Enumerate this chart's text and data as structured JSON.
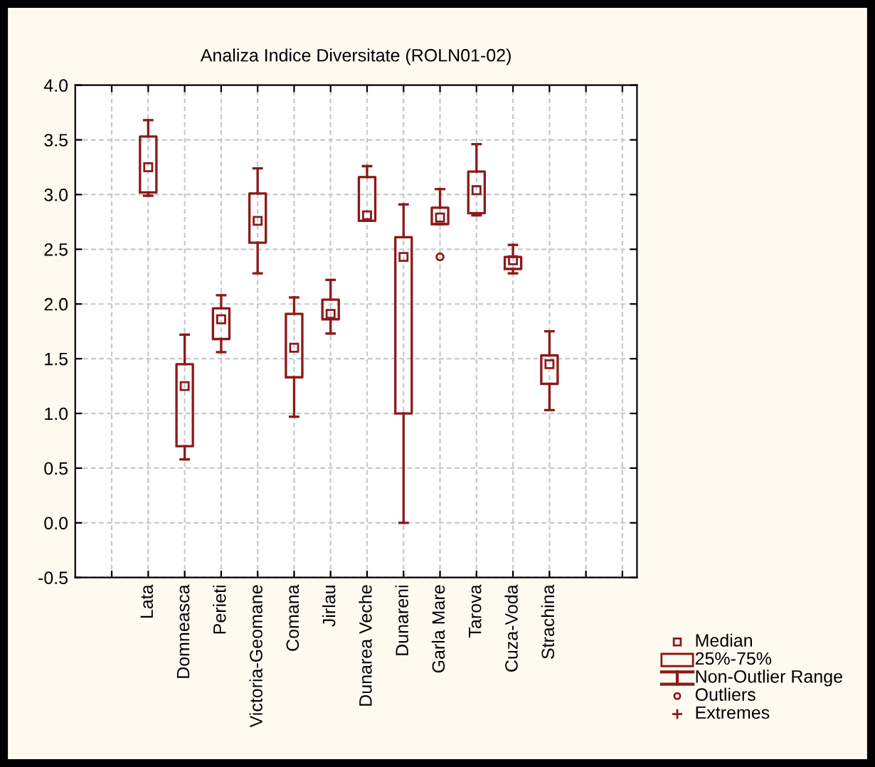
{
  "chart_data": {
    "type": "box",
    "title": "Analiza Indice Diversitate (ROLN01-02)",
    "categories": [
      "Lata",
      "Domneasca",
      "Perieti",
      "Victoria-Geomane",
      "Comana",
      "Jirlau",
      "Dunarea Veche",
      "Dunareni",
      "Garla Mare",
      "Tarova",
      "Cuza-Voda",
      "Strachina"
    ],
    "color": "#8b1a1a",
    "boxes": [
      {
        "low": 2.99,
        "q1": 3.02,
        "median": 3.25,
        "q3": 3.53,
        "high": 3.68
      },
      {
        "low": 0.58,
        "q1": 0.7,
        "median": 1.25,
        "q3": 1.45,
        "high": 1.72
      },
      {
        "low": 1.56,
        "q1": 1.68,
        "median": 1.86,
        "q3": 1.96,
        "high": 2.08
      },
      {
        "low": 2.28,
        "q1": 2.56,
        "median": 2.76,
        "q3": 3.01,
        "high": 3.24
      },
      {
        "low": 0.97,
        "q1": 1.33,
        "median": 1.6,
        "q3": 1.91,
        "high": 2.06
      },
      {
        "low": 1.73,
        "q1": 1.86,
        "median": 1.91,
        "q3": 2.04,
        "high": 2.22
      },
      {
        "low": 2.76,
        "q1": 2.76,
        "median": 2.81,
        "q3": 3.16,
        "high": 3.26
      },
      {
        "low": 0.0,
        "q1": 1.0,
        "median": 2.43,
        "q3": 2.61,
        "high": 2.91
      },
      {
        "low": 2.73,
        "q1": 2.73,
        "median": 2.79,
        "q3": 2.88,
        "high": 3.05,
        "outliers": [
          2.43
        ]
      },
      {
        "low": 2.81,
        "q1": 2.83,
        "median": 3.04,
        "q3": 3.21,
        "high": 3.46
      },
      {
        "low": 2.28,
        "q1": 2.32,
        "median": 2.4,
        "q3": 2.43,
        "high": 2.54
      },
      {
        "low": 1.03,
        "q1": 1.27,
        "median": 1.45,
        "q3": 1.53,
        "high": 1.75
      }
    ],
    "ylim": [
      -0.5,
      4.0
    ],
    "yticks": [
      -0.5,
      {
        "value": 0,
        "label": "0.0"
      },
      0.5,
      {
        "value": 1,
        "label": "1.0"
      },
      1.5,
      {
        "value": 2,
        "label": "2.0"
      },
      2.5,
      {
        "value": 3,
        "label": "3.0"
      },
      3.5,
      {
        "value": 4,
        "label": "4.0"
      }
    ],
    "grid": true,
    "annotations": [
      "Median",
      "25%-75%",
      "Non-Outlier Range",
      "Outliers",
      "Extremes"
    ]
  }
}
